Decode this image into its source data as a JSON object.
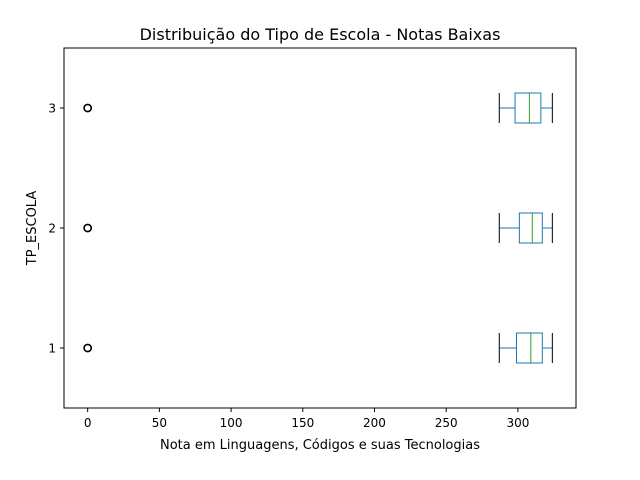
{
  "chart_data": {
    "type": "boxplot",
    "orientation": "horizontal",
    "title": "Distribuição do Tipo de Escola - Notas Baixas",
    "xlabel": "Nota em Linguagens, Códigos e suas Tecnologias",
    "ylabel": "TP_ESCOLA",
    "xlim": [
      -16.5,
      340.5
    ],
    "x_ticks": [
      0,
      50,
      100,
      150,
      200,
      250,
      300
    ],
    "categories": [
      "1",
      "2",
      "3"
    ],
    "boxes": [
      {
        "category": "1",
        "whisker_low": 287,
        "q1": 299,
        "median": 309,
        "q3": 317,
        "whisker_high": 324,
        "outliers": [
          0
        ]
      },
      {
        "category": "2",
        "whisker_low": 287,
        "q1": 301,
        "median": 310,
        "q3": 317,
        "whisker_high": 324,
        "outliers": [
          0
        ]
      },
      {
        "category": "3",
        "whisker_low": 287,
        "q1": 298,
        "median": 308,
        "q3": 316,
        "whisker_high": 324,
        "outliers": [
          0
        ]
      }
    ],
    "colors": {
      "box": "#1f77b4",
      "median": "#2ca02c",
      "whisker": "#000000",
      "axes": "#000000"
    },
    "grid": false,
    "legend": "none"
  }
}
